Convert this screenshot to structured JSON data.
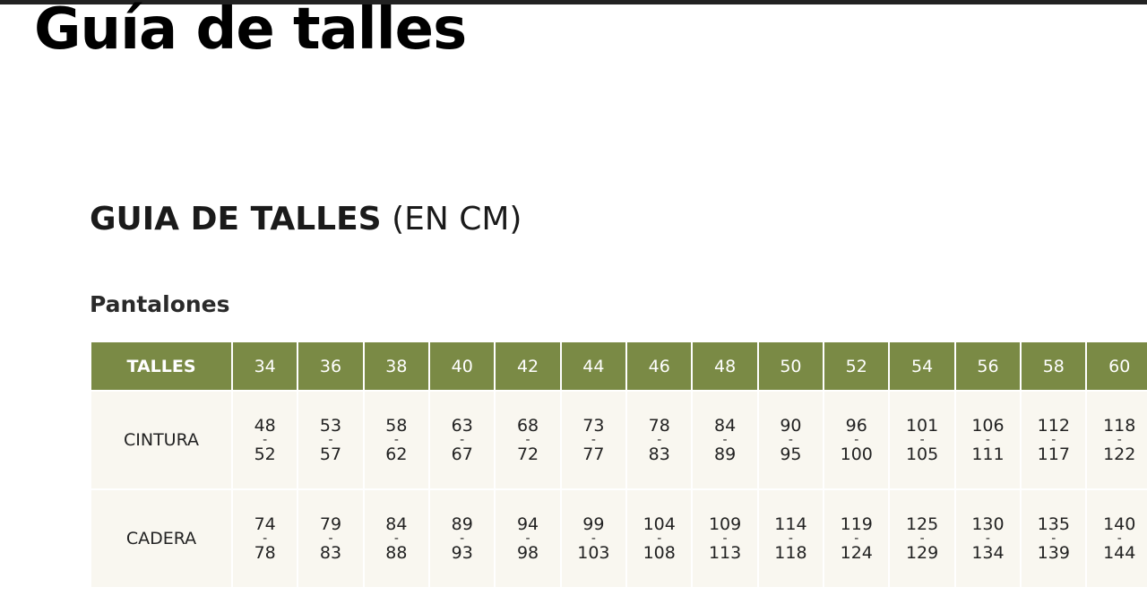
{
  "page_title": "Guía de talles",
  "section": {
    "title_bold": "GUIA DE TALLES",
    "title_unit": "(EN CM)",
    "subtitle": "Pantalones"
  },
  "table": {
    "range_separator": "-",
    "header": {
      "label": "TALLES",
      "sizes": [
        "34",
        "36",
        "38",
        "40",
        "42",
        "44",
        "46",
        "48",
        "50",
        "52",
        "54",
        "56",
        "58",
        "60"
      ]
    },
    "rows": [
      {
        "label": "CINTURA",
        "cells": [
          [
            "48",
            "52"
          ],
          [
            "53",
            "57"
          ],
          [
            "58",
            "62"
          ],
          [
            "63",
            "67"
          ],
          [
            "68",
            "72"
          ],
          [
            "73",
            "77"
          ],
          [
            "78",
            "83"
          ],
          [
            "84",
            "89"
          ],
          [
            "90",
            "95"
          ],
          [
            "96",
            "100"
          ],
          [
            "101",
            "105"
          ],
          [
            "106",
            "111"
          ],
          [
            "112",
            "117"
          ],
          [
            "118",
            "122"
          ]
        ]
      },
      {
        "label": "CADERA",
        "cells": [
          [
            "74",
            "78"
          ],
          [
            "79",
            "83"
          ],
          [
            "84",
            "88"
          ],
          [
            "89",
            "93"
          ],
          [
            "94",
            "98"
          ],
          [
            "99",
            "103"
          ],
          [
            "104",
            "108"
          ],
          [
            "109",
            "113"
          ],
          [
            "114",
            "118"
          ],
          [
            "119",
            "124"
          ],
          [
            "125",
            "129"
          ],
          [
            "130",
            "134"
          ],
          [
            "135",
            "139"
          ],
          [
            "140",
            "144"
          ]
        ]
      }
    ]
  }
}
